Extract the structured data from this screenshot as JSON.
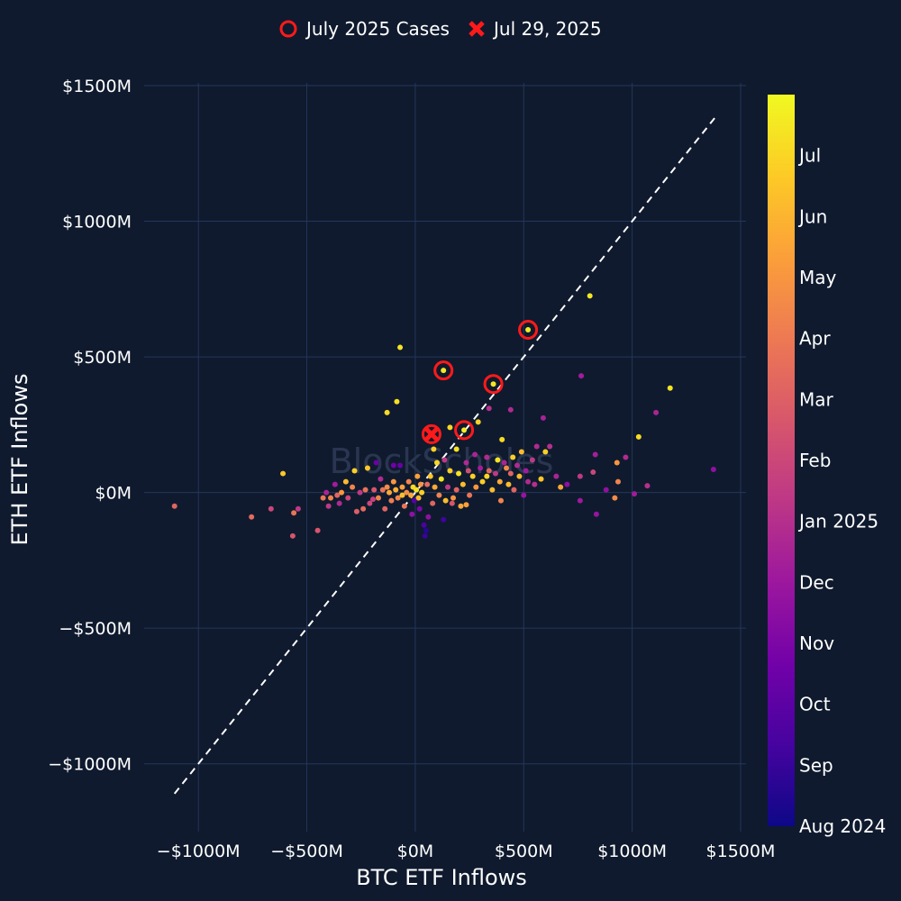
{
  "chart_data": {
    "type": "scatter",
    "xlabel": "BTC ETF Inflows",
    "ylabel": "ETH ETF Inflows",
    "xlim": [
      -1250,
      1525
    ],
    "ylim": [
      -1250,
      1510
    ],
    "x_ticks": [
      -1000,
      -500,
      0,
      500,
      1000,
      1500
    ],
    "y_ticks": [
      -1000,
      -500,
      0,
      500,
      1000,
      1500
    ],
    "x_tick_labels": [
      "−$1000M",
      "−$500M",
      "$0M",
      "$500M",
      "$1000M",
      "$1500M"
    ],
    "y_tick_labels": [
      "−$1000M",
      "−$500M",
      "$0M",
      "$500M",
      "$1000M",
      "$1500M"
    ],
    "grid": true,
    "watermark": "BlockScholes",
    "reference_line": {
      "style": "dashed",
      "from": [
        -1110,
        -1110
      ],
      "to": [
        1380,
        1380
      ]
    },
    "legend": {
      "position": "top-center",
      "entries": [
        {
          "label": "July 2025 Cases",
          "marker": "open-circle",
          "color": "#ff1a1a"
        },
        {
          "label": "Jul 29, 2025",
          "marker": "x",
          "color": "#ff1a1a"
        }
      ]
    },
    "colorbar": {
      "colors": [
        "#0d0887",
        "#46039f",
        "#7201a8",
        "#9c179e",
        "#bd3786",
        "#d8576b",
        "#ed7953",
        "#fb9f3a",
        "#fdca26",
        "#f0f921"
      ],
      "tick_labels": [
        "Aug 2024",
        "Sep",
        "Oct",
        "Nov",
        "Dec",
        "Jan 2025",
        "Feb",
        "Mar",
        "Apr",
        "May",
        "Jun",
        "Jul"
      ],
      "tick_fractions": [
        0.0,
        0.083,
        0.167,
        0.25,
        0.333,
        0.417,
        0.5,
        0.583,
        0.667,
        0.75,
        0.833,
        0.917
      ]
    },
    "series": [
      {
        "name": "July 2025 Cases",
        "points": [
          [
            520,
            600
          ],
          [
            130,
            450
          ],
          [
            360,
            400
          ],
          [
            225,
            230
          ],
          [
            75,
            215
          ]
        ]
      },
      {
        "name": "Jul 29, 2025",
        "points": [
          [
            75,
            215
          ]
        ]
      }
    ],
    "points": [
      {
        "x": 805,
        "y": 725,
        "t": 0.96
      },
      {
        "x": 520,
        "y": 600,
        "t": 0.97
      },
      {
        "x": -70,
        "y": 535,
        "t": 0.95
      },
      {
        "x": 130,
        "y": 450,
        "t": 0.96
      },
      {
        "x": 360,
        "y": 400,
        "t": 0.95
      },
      {
        "x": -85,
        "y": 335,
        "t": 0.94
      },
      {
        "x": -130,
        "y": 295,
        "t": 0.93
      },
      {
        "x": 290,
        "y": 260,
        "t": 0.9
      },
      {
        "x": 160,
        "y": 240,
        "t": 0.92
      },
      {
        "x": 225,
        "y": 230,
        "t": 0.97
      },
      {
        "x": 75,
        "y": 215,
        "t": 0.99
      },
      {
        "x": 400,
        "y": 195,
        "t": 0.93
      },
      {
        "x": 1030,
        "y": 205,
        "t": 0.93
      },
      {
        "x": 1175,
        "y": 385,
        "t": 0.95
      },
      {
        "x": 765,
        "y": 430,
        "t": 0.35
      },
      {
        "x": 440,
        "y": 305,
        "t": 0.4
      },
      {
        "x": 590,
        "y": 275,
        "t": 0.37
      },
      {
        "x": 1110,
        "y": 295,
        "t": 0.38
      },
      {
        "x": 340,
        "y": 310,
        "t": 0.42
      },
      {
        "x": 1375,
        "y": 85,
        "t": 0.3
      },
      {
        "x": 1070,
        "y": 25,
        "t": 0.42
      },
      {
        "x": 970,
        "y": 130,
        "t": 0.4
      },
      {
        "x": 1010,
        "y": -5,
        "t": 0.35
      },
      {
        "x": 830,
        "y": 140,
        "t": 0.36
      },
      {
        "x": 930,
        "y": 110,
        "t": 0.75
      },
      {
        "x": 935,
        "y": 40,
        "t": 0.7
      },
      {
        "x": 920,
        "y": -20,
        "t": 0.72
      },
      {
        "x": 835,
        "y": -80,
        "t": 0.32
      },
      {
        "x": 760,
        "y": -30,
        "t": 0.34
      },
      {
        "x": 880,
        "y": 10,
        "t": 0.3
      },
      {
        "x": 820,
        "y": 75,
        "t": 0.5
      },
      {
        "x": 760,
        "y": 60,
        "t": 0.45
      },
      {
        "x": 670,
        "y": 20,
        "t": 0.8
      },
      {
        "x": 620,
        "y": 170,
        "t": 0.42
      },
      {
        "x": 600,
        "y": 150,
        "t": 0.9
      },
      {
        "x": 560,
        "y": 170,
        "t": 0.4
      },
      {
        "x": 540,
        "y": 120,
        "t": 0.45
      },
      {
        "x": 510,
        "y": 80,
        "t": 0.35
      },
      {
        "x": 490,
        "y": 150,
        "t": 0.85
      },
      {
        "x": 470,
        "y": 100,
        "t": 0.4
      },
      {
        "x": 450,
        "y": 130,
        "t": 0.9
      },
      {
        "x": 440,
        "y": 70,
        "t": 0.6
      },
      {
        "x": 430,
        "y": 30,
        "t": 0.85
      },
      {
        "x": 410,
        "y": 110,
        "t": 0.38
      },
      {
        "x": 390,
        "y": 40,
        "t": 0.8
      },
      {
        "x": 380,
        "y": 120,
        "t": 0.95
      },
      {
        "x": 370,
        "y": 70,
        "t": 0.45
      },
      {
        "x": 355,
        "y": 10,
        "t": 0.85
      },
      {
        "x": 340,
        "y": 80,
        "t": 0.6
      },
      {
        "x": 330,
        "y": 130,
        "t": 0.4
      },
      {
        "x": 310,
        "y": 40,
        "t": 0.9
      },
      {
        "x": 300,
        "y": 90,
        "t": 0.35
      },
      {
        "x": 280,
        "y": 20,
        "t": 0.75
      },
      {
        "x": 265,
        "y": 60,
        "t": 0.9
      },
      {
        "x": 250,
        "y": -10,
        "t": 0.65
      },
      {
        "x": 235,
        "y": 110,
        "t": 0.4
      },
      {
        "x": 220,
        "y": 30,
        "t": 0.85
      },
      {
        "x": 210,
        "y": -50,
        "t": 0.8
      },
      {
        "x": 200,
        "y": 70,
        "t": 0.95
      },
      {
        "x": 190,
        "y": 10,
        "t": 0.6
      },
      {
        "x": 175,
        "y": -20,
        "t": 0.75
      },
      {
        "x": 160,
        "y": 80,
        "t": 0.9
      },
      {
        "x": 150,
        "y": 20,
        "t": 0.45
      },
      {
        "x": 140,
        "y": -30,
        "t": 0.85
      },
      {
        "x": 130,
        "y": -100,
        "t": 0.1
      },
      {
        "x": 120,
        "y": 50,
        "t": 0.95
      },
      {
        "x": 110,
        "y": -10,
        "t": 0.7
      },
      {
        "x": 100,
        "y": 110,
        "t": 0.92
      },
      {
        "x": 90,
        "y": 20,
        "t": 0.8
      },
      {
        "x": 80,
        "y": -40,
        "t": 0.6
      },
      {
        "x": 70,
        "y": 60,
        "t": 0.88
      },
      {
        "x": 60,
        "y": -90,
        "t": 0.3
      },
      {
        "x": 50,
        "y": -140,
        "t": 0.05
      },
      {
        "x": 45,
        "y": -160,
        "t": 0.08
      },
      {
        "x": 40,
        "y": -120,
        "t": 0.12
      },
      {
        "x": 30,
        "y": 0,
        "t": 0.9
      },
      {
        "x": 25,
        "y": 30,
        "t": 0.75
      },
      {
        "x": 15,
        "y": -20,
        "t": 0.85
      },
      {
        "x": 5,
        "y": 10,
        "t": 0.95
      },
      {
        "x": -5,
        "y": -30,
        "t": 0.15
      },
      {
        "x": -10,
        "y": 20,
        "t": 0.92
      },
      {
        "x": -20,
        "y": -10,
        "t": 0.8
      },
      {
        "x": -30,
        "y": 40,
        "t": 0.7
      },
      {
        "x": -40,
        "y": 0,
        "t": 0.72
      },
      {
        "x": -50,
        "y": -50,
        "t": 0.65
      },
      {
        "x": -60,
        "y": 20,
        "t": 0.78
      },
      {
        "x": -70,
        "y": 100,
        "t": 0.2
      },
      {
        "x": -80,
        "y": -20,
        "t": 0.7
      },
      {
        "x": -90,
        "y": 10,
        "t": 0.82
      },
      {
        "x": -100,
        "y": 40,
        "t": 0.75
      },
      {
        "x": -110,
        "y": -30,
        "t": 0.68
      },
      {
        "x": -120,
        "y": 0,
        "t": 0.8
      },
      {
        "x": -130,
        "y": 20,
        "t": 0.72
      },
      {
        "x": -140,
        "y": -60,
        "t": 0.6
      },
      {
        "x": -150,
        "y": 10,
        "t": 0.65
      },
      {
        "x": -160,
        "y": 50,
        "t": 0.4
      },
      {
        "x": -170,
        "y": -20,
        "t": 0.7
      },
      {
        "x": -190,
        "y": 10,
        "t": 0.55
      },
      {
        "x": -210,
        "y": -40,
        "t": 0.5
      },
      {
        "x": -220,
        "y": 90,
        "t": 0.88
      },
      {
        "x": -240,
        "y": -60,
        "t": 0.62
      },
      {
        "x": -255,
        "y": 0,
        "t": 0.45
      },
      {
        "x": -270,
        "y": -70,
        "t": 0.58
      },
      {
        "x": -280,
        "y": 80,
        "t": 0.9
      },
      {
        "x": -290,
        "y": 20,
        "t": 0.7
      },
      {
        "x": -310,
        "y": -20,
        "t": 0.5
      },
      {
        "x": -320,
        "y": 40,
        "t": 0.85
      },
      {
        "x": -340,
        "y": 0,
        "t": 0.75
      },
      {
        "x": -350,
        "y": -40,
        "t": 0.4
      },
      {
        "x": -360,
        "y": -10,
        "t": 0.6
      },
      {
        "x": -370,
        "y": 30,
        "t": 0.35
      },
      {
        "x": -390,
        "y": -20,
        "t": 0.7
      },
      {
        "x": -400,
        "y": -50,
        "t": 0.45
      },
      {
        "x": -410,
        "y": 0,
        "t": 0.38
      },
      {
        "x": -425,
        "y": -20,
        "t": 0.66
      },
      {
        "x": -450,
        "y": -140,
        "t": 0.55
      },
      {
        "x": -540,
        "y": -60,
        "t": 0.45
      },
      {
        "x": -560,
        "y": -75,
        "t": 0.65
      },
      {
        "x": -565,
        "y": -160,
        "t": 0.55
      },
      {
        "x": -610,
        "y": 70,
        "t": 0.88
      },
      {
        "x": -665,
        "y": -60,
        "t": 0.5
      },
      {
        "x": -755,
        "y": -90,
        "t": 0.62
      },
      {
        "x": -1110,
        "y": -50,
        "t": 0.6
      },
      {
        "x": -180,
        "y": 110,
        "t": 0.2
      },
      {
        "x": -100,
        "y": 100,
        "t": 0.22
      },
      {
        "x": 235,
        "y": -45,
        "t": 0.78
      },
      {
        "x": 395,
        "y": -30,
        "t": 0.7
      },
      {
        "x": 455,
        "y": 10,
        "t": 0.6
      },
      {
        "x": 500,
        "y": -10,
        "t": 0.32
      },
      {
        "x": 550,
        "y": 30,
        "t": 0.42
      },
      {
        "x": 580,
        "y": 50,
        "t": 0.88
      },
      {
        "x": 650,
        "y": 60,
        "t": 0.38
      },
      {
        "x": 700,
        "y": 30,
        "t": 0.3
      },
      {
        "x": 170,
        "y": -40,
        "t": 0.55
      },
      {
        "x": 20,
        "y": -60,
        "t": 0.25
      },
      {
        "x": -15,
        "y": -80,
        "t": 0.3
      },
      {
        "x": 85,
        "y": 160,
        "t": 0.9
      },
      {
        "x": 190,
        "y": 160,
        "t": 0.95
      },
      {
        "x": 275,
        "y": 140,
        "t": 0.38
      },
      {
        "x": 330,
        "y": 60,
        "t": 0.92
      },
      {
        "x": 480,
        "y": 60,
        "t": 0.85
      },
      {
        "x": 520,
        "y": 40,
        "t": 0.4
      },
      {
        "x": 420,
        "y": 90,
        "t": 0.72
      },
      {
        "x": -230,
        "y": 10,
        "t": 0.64
      },
      {
        "x": -195,
        "y": -25,
        "t": 0.48
      },
      {
        "x": -60,
        "y": -10,
        "t": 0.86
      },
      {
        "x": 10,
        "y": 60,
        "t": 0.78
      },
      {
        "x": 55,
        "y": 30,
        "t": 0.62
      },
      {
        "x": 135,
        "y": 120,
        "t": 0.45
      },
      {
        "x": 245,
        "y": 80,
        "t": 0.52
      }
    ]
  }
}
